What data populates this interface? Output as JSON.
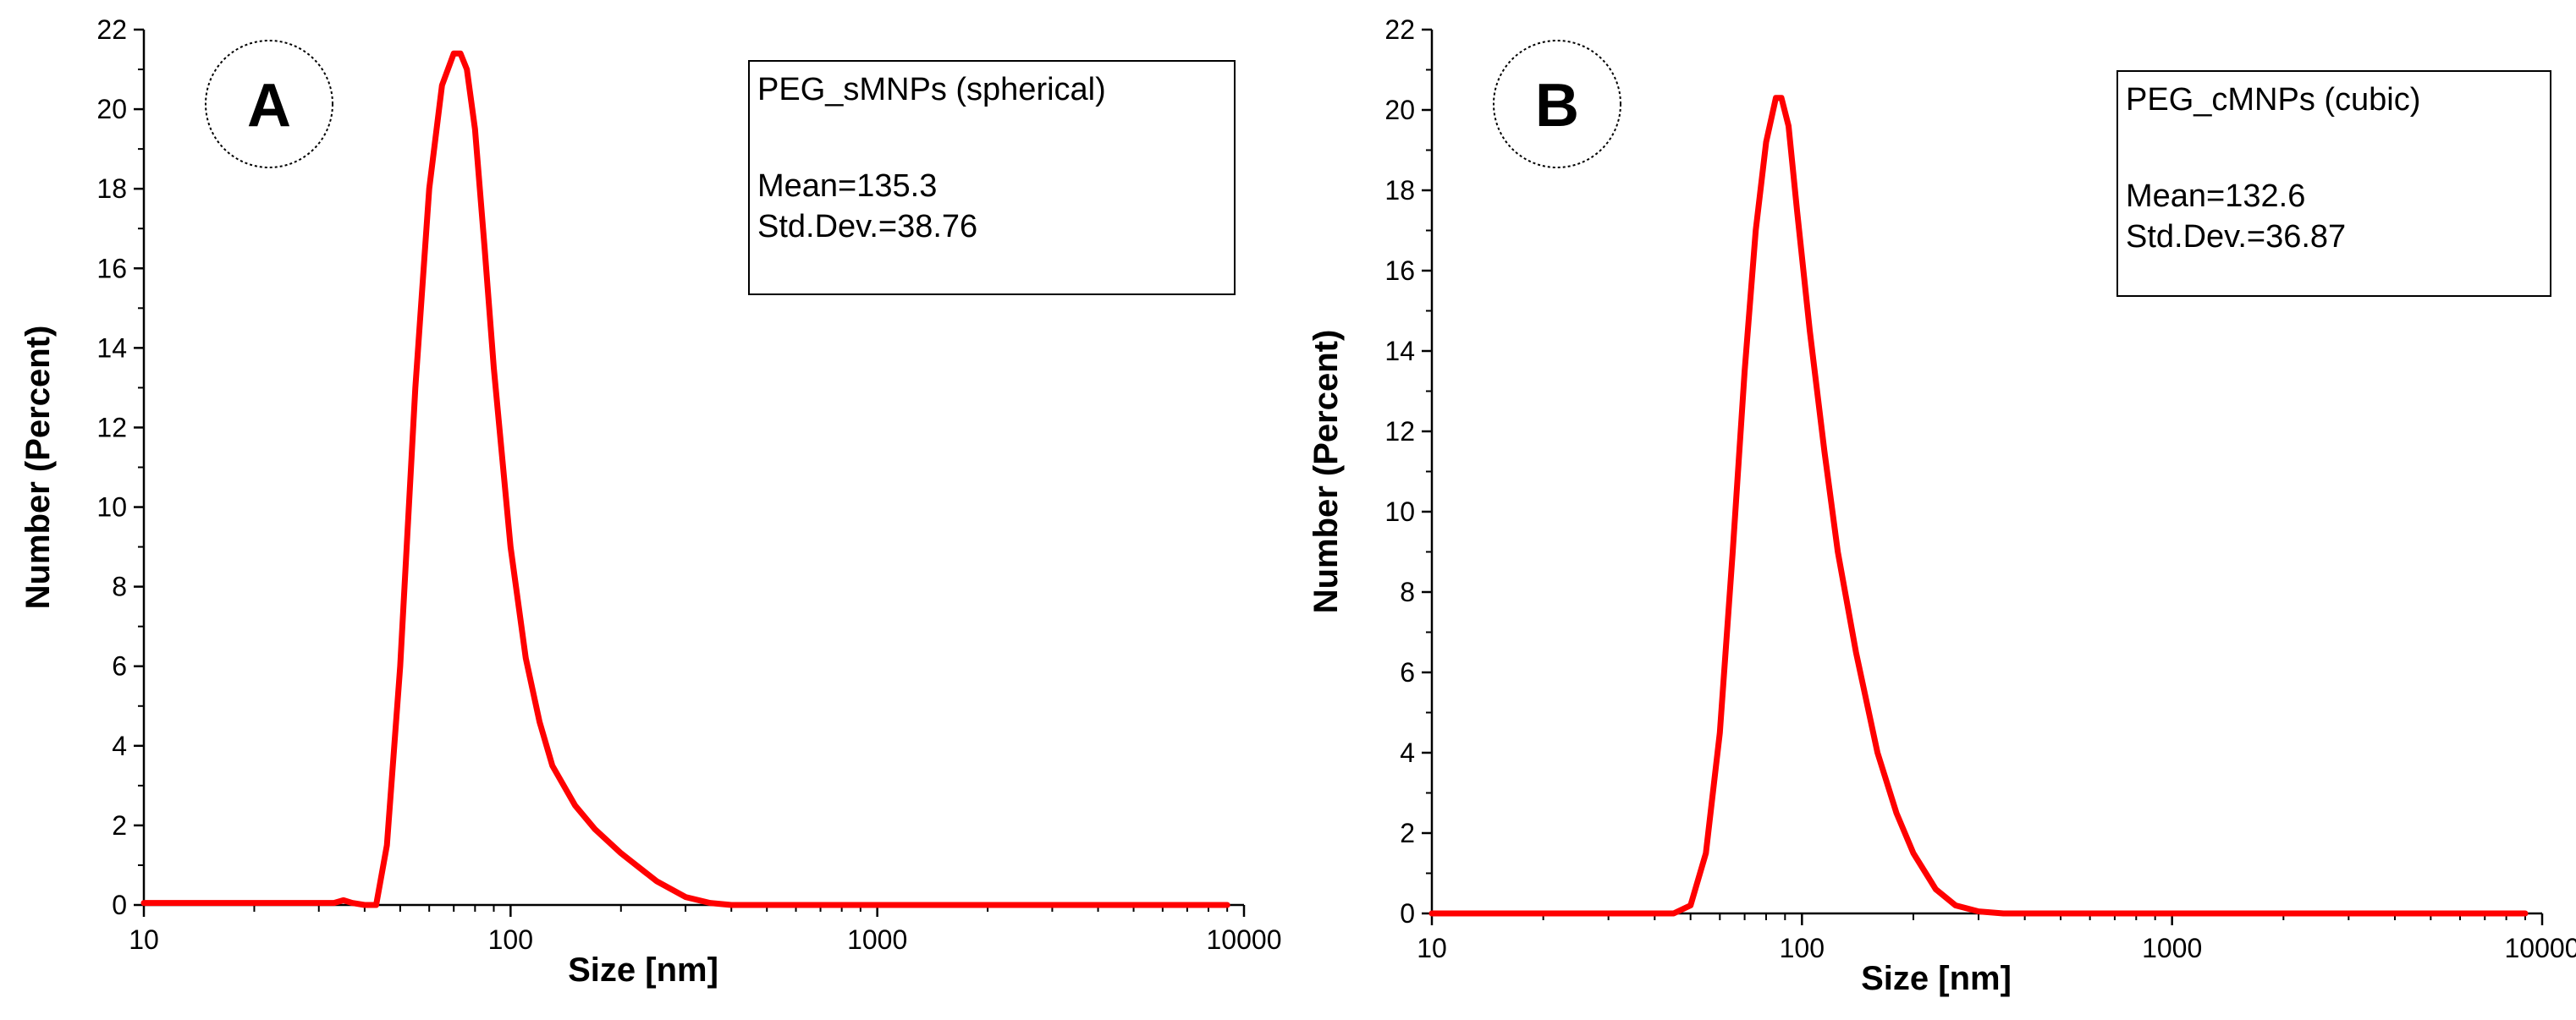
{
  "chart_data": [
    {
      "type": "line",
      "panel_label": "A",
      "title": "",
      "legend_title": "PEG_sMNPs (spherical)",
      "stats": [
        "Mean=135.3",
        "Std.Dev.=38.76"
      ],
      "xlabel": "Size [nm]",
      "ylabel": "Number (Percent)",
      "xscale": "log",
      "xlim": [
        10,
        10000
      ],
      "ylim": [
        0,
        22
      ],
      "xticks": [
        10,
        100,
        1000,
        10000
      ],
      "xtick_labels": [
        "10",
        "100",
        "1000",
        "10000"
      ],
      "yticks": [
        0,
        2,
        4,
        6,
        8,
        10,
        12,
        14,
        16,
        18,
        20,
        22
      ],
      "ytick_labels": [
        "0",
        "2",
        "4",
        "6",
        "8",
        "10",
        "12",
        "14",
        "16",
        "18",
        "20",
        "22"
      ],
      "legend_position": "top-right",
      "badge_position": "top-left",
      "series": [
        {
          "name": "PEG_sMNPs (spherical)",
          "color": "#ff0000",
          "x": [
            10,
            20,
            33,
            35,
            37,
            40,
            43,
            46,
            50,
            55,
            60,
            65,
            70,
            73,
            76,
            80,
            85,
            90,
            100,
            110,
            120,
            130,
            150,
            170,
            200,
            250,
            300,
            350,
            400,
            500,
            1000,
            5000,
            9000
          ],
          "y": [
            0.05,
            0.05,
            0.05,
            0.12,
            0.05,
            0.0,
            0.0,
            1.5,
            6.0,
            13.0,
            18.0,
            20.6,
            21.4,
            21.4,
            21.0,
            19.5,
            16.5,
            13.5,
            9.0,
            6.2,
            4.6,
            3.5,
            2.5,
            1.9,
            1.3,
            0.6,
            0.2,
            0.05,
            0.0,
            0.0,
            0.0,
            0.0,
            0.0
          ]
        }
      ]
    },
    {
      "type": "line",
      "panel_label": "B",
      "title": "",
      "legend_title": "PEG_cMNPs (cubic)",
      "stats": [
        "Mean=132.6",
        "Std.Dev.=36.87"
      ],
      "xlabel": "Size [nm]",
      "ylabel": "Number (Percent)",
      "xscale": "log",
      "xlim": [
        10,
        10000
      ],
      "ylim": [
        0,
        22
      ],
      "xticks": [
        10,
        100,
        1000,
        10000
      ],
      "xtick_labels": [
        "10",
        "100",
        "1000",
        "10000"
      ],
      "yticks": [
        0,
        2,
        4,
        6,
        8,
        10,
        12,
        14,
        16,
        18,
        20,
        22
      ],
      "ytick_labels": [
        "0",
        "2",
        "4",
        "6",
        "8",
        "10",
        "12",
        "14",
        "16",
        "18",
        "20",
        "22"
      ],
      "legend_position": "top-right",
      "badge_position": "top-left",
      "series": [
        {
          "name": "PEG_cMNPs (cubic)",
          "color": "#ff0000",
          "x": [
            10,
            30,
            45,
            50,
            55,
            60,
            65,
            70,
            75,
            80,
            85,
            88,
            92,
            97,
            105,
            115,
            125,
            140,
            160,
            180,
            200,
            230,
            260,
            300,
            350,
            400,
            1000,
            5000,
            9000
          ],
          "y": [
            0.0,
            0.0,
            0.0,
            0.2,
            1.5,
            4.5,
            9.0,
            13.5,
            17.0,
            19.2,
            20.3,
            20.3,
            19.6,
            17.5,
            14.5,
            11.5,
            9.0,
            6.5,
            4.0,
            2.5,
            1.5,
            0.6,
            0.2,
            0.05,
            0.0,
            0.0,
            0.0,
            0.0,
            0.0
          ]
        }
      ]
    }
  ]
}
